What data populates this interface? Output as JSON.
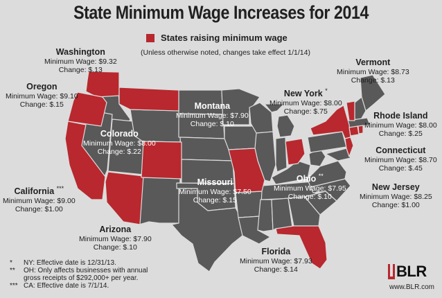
{
  "title": "State Minimum Wage Increases for 2014",
  "legend_label": "States raising minimum wage",
  "subnote": "(Unless otherwise noted, changes take effect 1/1/14)",
  "colors": {
    "raising": "#b8282e",
    "other": "#595959",
    "background": "#dcdcdc"
  },
  "wage_prefix": "Minimum Wage: ",
  "change_prefix": "Change: ",
  "states": [
    {
      "name": "Washington",
      "wage": "$9.32",
      "change": "$.13"
    },
    {
      "name": "Oregon",
      "wage": "$9.10",
      "change": "$.15"
    },
    {
      "name": "California",
      "mark": "***",
      "wage": "$9.00",
      "change": "$1.00"
    },
    {
      "name": "Arizona",
      "wage": "$7.90",
      "change": "$.10"
    },
    {
      "name": "Colorado",
      "wage": "$8.00",
      "change": "$.22"
    },
    {
      "name": "Montana",
      "wage": "$7.90",
      "change": "$.10"
    },
    {
      "name": "Missouri",
      "wage": "$7.50",
      "change": "$.15"
    },
    {
      "name": "Ohio",
      "mark": "**",
      "wage": "$7.95",
      "change": "$.10"
    },
    {
      "name": "Florida",
      "wage": "$7.93",
      "change": "$.14"
    },
    {
      "name": "New York",
      "mark": "*",
      "wage": "$8.00",
      "change": "$.75"
    },
    {
      "name": "Vermont",
      "wage": "$8.73",
      "change": "$.13"
    },
    {
      "name": "Rhode Island",
      "wage": "$8.00",
      "change": "$.25"
    },
    {
      "name": "Connecticut",
      "wage": "$8.70",
      "change": "$.45"
    },
    {
      "name": "New Jersey",
      "wage": "$8.25",
      "change": "$1.00"
    }
  ],
  "footnotes": [
    {
      "mark": "*",
      "lines": [
        "NY: Effective date is 12/31/13."
      ]
    },
    {
      "mark": "**",
      "lines": [
        "OH: Only affects businesses with annual",
        "gross receipts of $292,000+ per year."
      ]
    },
    {
      "mark": "***",
      "lines": [
        "CA: Effective date is 7/1/14."
      ]
    }
  ],
  "logo_text": "BLR",
  "logo_url": "www.BLR.com"
}
